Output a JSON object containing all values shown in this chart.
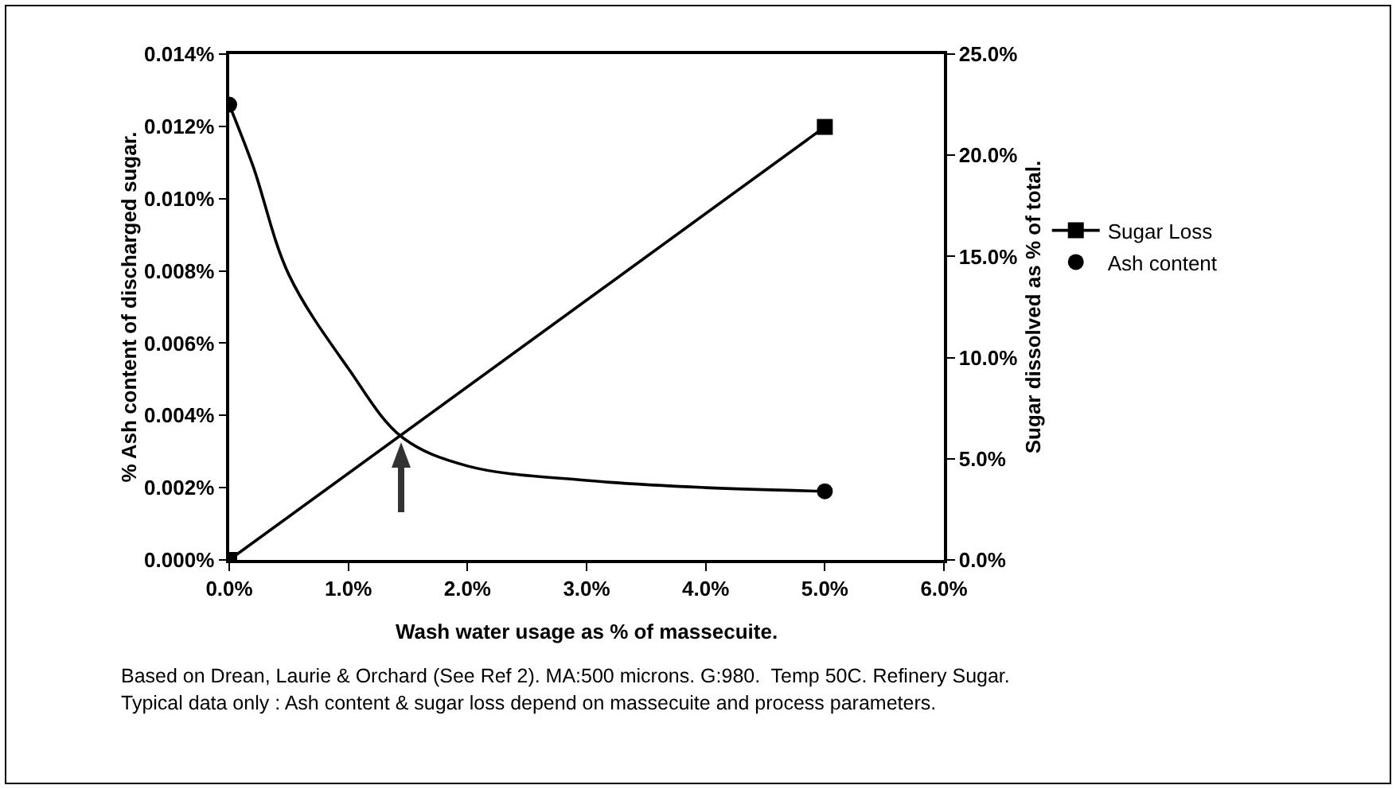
{
  "chart_data": {
    "type": "line",
    "xlabel": "Wash water usage as % of massecuite.",
    "ylabel": "% Ash content of discharged sugar.",
    "y2label": "Sugar dissolved as % of total.",
    "xlim": [
      0,
      6
    ],
    "xticks": [
      {
        "value": 0,
        "label": "0.0%"
      },
      {
        "value": 1,
        "label": "1.0%"
      },
      {
        "value": 2,
        "label": "2.0%"
      },
      {
        "value": 3,
        "label": "3.0%"
      },
      {
        "value": 4,
        "label": "4.0%"
      },
      {
        "value": 5,
        "label": "5.0%"
      },
      {
        "value": 6,
        "label": "6.0%"
      }
    ],
    "ylim": [
      0,
      0.014
    ],
    "yticks": [
      {
        "value": 0,
        "label": "0.000%"
      },
      {
        "value": 0.002,
        "label": "0.002%"
      },
      {
        "value": 0.004,
        "label": "0.004%"
      },
      {
        "value": 0.006,
        "label": "0.006%"
      },
      {
        "value": 0.008,
        "label": "0.008%"
      },
      {
        "value": 0.01,
        "label": "0.010%"
      },
      {
        "value": 0.012,
        "label": "0.012%"
      },
      {
        "value": 0.014,
        "label": "0.014%"
      }
    ],
    "y2lim": [
      0,
      25
    ],
    "y2ticks": [
      {
        "value": 0,
        "label": "0.0%"
      },
      {
        "value": 5,
        "label": "5.0%"
      },
      {
        "value": 10,
        "label": "10.0%"
      },
      {
        "value": 15,
        "label": "15.0%"
      },
      {
        "value": 20,
        "label": "20.0%"
      },
      {
        "value": 25,
        "label": "25.0%"
      }
    ],
    "series": [
      {
        "name": "Sugar Loss",
        "color": "#000000",
        "marker": "square",
        "axis": "y2",
        "x": [
          0,
          5
        ],
        "values": [
          0,
          21.4
        ]
      },
      {
        "color": "#000000",
        "marker": "none",
        "x": [
          0,
          0.2,
          0.5,
          1,
          1.45,
          2,
          3,
          4,
          5
        ],
        "values": [
          0.0126,
          0.0109,
          0.0079,
          0.0053,
          0.0034,
          0.0026,
          0.0022,
          0.002,
          0.0019
        ]
      },
      {
        "name": "Ash content",
        "type": "scatter",
        "color": "#000000",
        "marker": "circle",
        "x": [
          0,
          5
        ],
        "values": [
          0.0126,
          0.0019
        ]
      }
    ],
    "annotations": [
      "Based on Drean, Laurie & Orchard (See Ref 2). MA:500 microns. G:980.  Temp 50C. Refinery Sugar.",
      "Typical data only : Ash content & sugar loss depend on massecuite and process parameters."
    ],
    "legend": "right",
    "grid": false
  }
}
